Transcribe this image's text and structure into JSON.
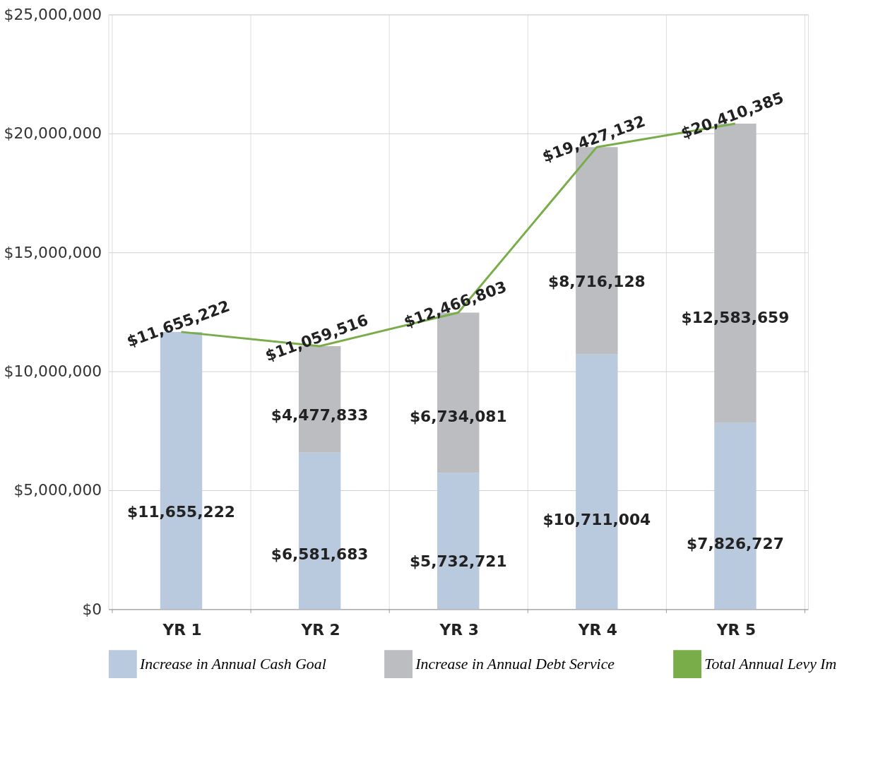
{
  "chart_data": {
    "type": "bar",
    "stacked": true,
    "categories": [
      "YR 1",
      "YR 2",
      "YR 3",
      "YR 4",
      "YR 5"
    ],
    "series": [
      {
        "name": "Increase in Annual Cash Goal",
        "color": "#b9c9de",
        "values": [
          11655222,
          6581683,
          5732721,
          10711004,
          7826727
        ],
        "value_labels": [
          "$11,655,222",
          "$6,581,683",
          "$5,732,721",
          "$10,711,004",
          "$7,826,727"
        ]
      },
      {
        "name": "Increase in Annual Debt Service",
        "color": "#bcbdc1",
        "values": [
          null,
          4477833,
          6734081,
          8716128,
          12583659
        ],
        "value_labels": [
          null,
          "$4,477,833",
          "$6,734,081",
          "$8,716,128",
          "$12,583,659"
        ]
      },
      {
        "name": "Total Annual Levy Im",
        "type": "line",
        "color": "#79ad4a",
        "values": [
          11655222,
          11059516,
          12466803,
          19427132,
          20410385
        ],
        "value_labels": [
          "$11,655,222",
          "$11,059,516",
          "$12,466,803",
          "$19,427,132",
          "$20,410,385"
        ]
      }
    ],
    "ylim": [
      0,
      25000000
    ],
    "yticks": [
      {
        "value": 0,
        "label": "$0"
      },
      {
        "value": 5000000,
        "label": "$5,000,000"
      },
      {
        "value": 10000000,
        "label": "$10,000,000"
      },
      {
        "value": 15000000,
        "label": "$15,000,000"
      },
      {
        "value": 20000000,
        "label": "$20,000,000"
      },
      {
        "value": 25000000,
        "label": "$25,000,000"
      }
    ],
    "grid": true,
    "legend": "bottom"
  }
}
